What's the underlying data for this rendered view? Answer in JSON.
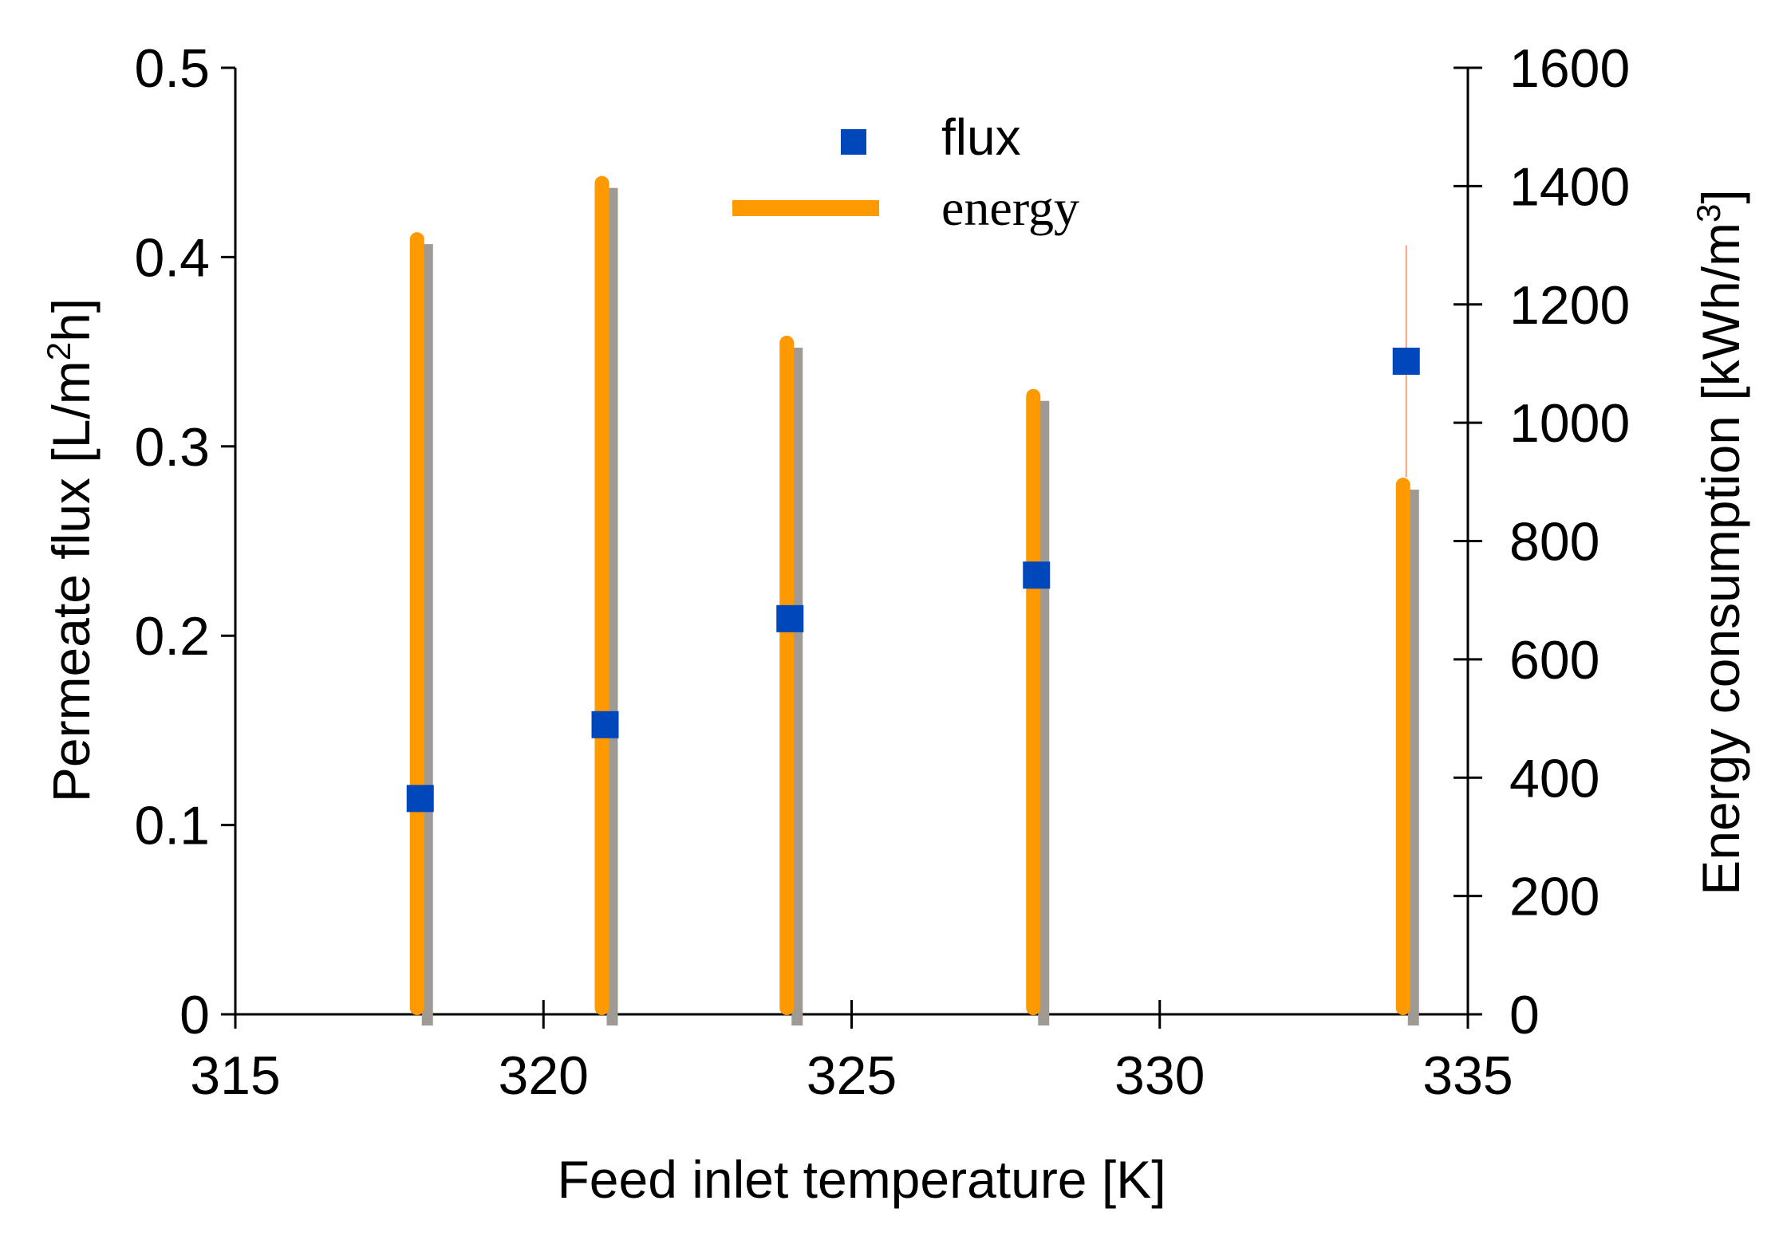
{
  "chart_data": {
    "type": "bar",
    "xlabel": "Feed inlet temperature [K]",
    "ylabel_left": {
      "main": "Permeate flux [L/m",
      "sup": "2",
      "tail": "h]"
    },
    "ylabel_right": {
      "main": "Energy consumption [kWh/m",
      "sup": "3",
      "tail": "]"
    },
    "xlim": [
      315,
      335
    ],
    "ylim_left": [
      0,
      0.5
    ],
    "ylim_right": [
      0,
      1600
    ],
    "x_ticks": [
      315,
      320,
      325,
      330,
      335
    ],
    "x_tick_labels": [
      "315",
      "320",
      "325",
      "330",
      "335"
    ],
    "y_left_ticks": [
      0,
      0.1,
      0.2,
      0.3,
      0.4,
      0.5
    ],
    "y_left_tick_labels": [
      "0",
      "0.1",
      "0.2",
      "0.3",
      "0.4",
      "0.5"
    ],
    "y_right_ticks": [
      0,
      200,
      400,
      600,
      800,
      1000,
      1200,
      1400,
      1600
    ],
    "y_right_tick_labels": [
      "0",
      "200",
      "400",
      "600",
      "800",
      "1000",
      "1200",
      "1400",
      "1600"
    ],
    "legend": [
      {
        "label": "flux",
        "color": "#0047bb",
        "marker": "square"
      },
      {
        "label": "energy",
        "color": "#ff9900",
        "marker": "line"
      }
    ],
    "legend_position": "top-center",
    "series": [
      {
        "name": "flux",
        "axis": "left",
        "x": [
          318,
          321,
          324,
          328,
          334
        ],
        "values": [
          0.114,
          0.153,
          0.209,
          0.232,
          0.345
        ],
        "color": "#0047bb"
      },
      {
        "name": "energy",
        "axis": "right",
        "x": [
          318,
          321,
          324,
          328,
          334
        ],
        "values": [
          1310,
          1405,
          1135,
          1045,
          895
        ],
        "color": "#ff9900",
        "shadow_color": "#a09a94"
      }
    ],
    "annotation_line": {
      "x": 334,
      "top_value": 1300,
      "color": "#f0a080"
    }
  }
}
